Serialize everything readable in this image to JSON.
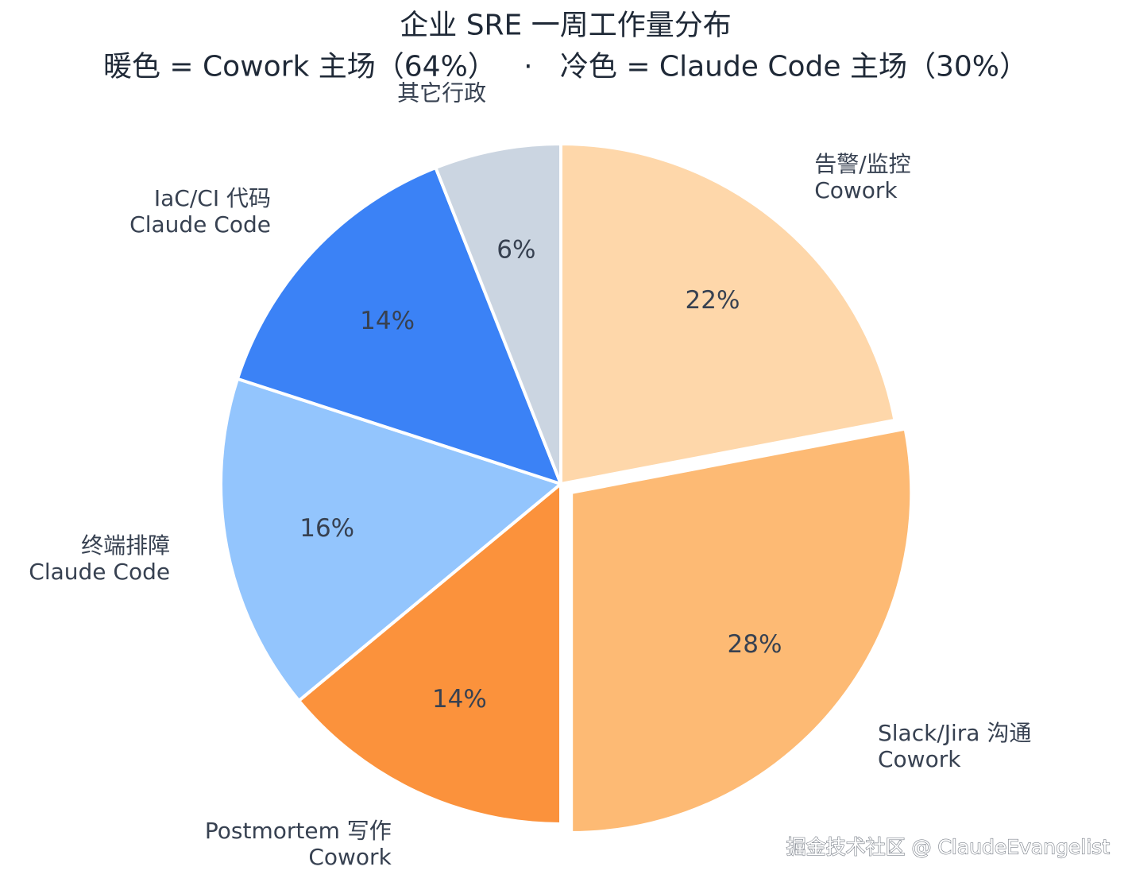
{
  "chart_data": {
    "type": "pie",
    "title": "企业 SRE 一周工作量分布",
    "subtitle": "暖色 = Cowork 主场（64%）   ·   冷色 = Claude Code 主场（30%）",
    "slices": [
      {
        "label": "告警/监控",
        "sublabel": "Cowork",
        "value": 22,
        "color": "#fed7aa",
        "exploded": false
      },
      {
        "label": "Slack/Jira 沟通",
        "sublabel": "Cowork",
        "value": 28,
        "color": "#fdba74",
        "exploded": true
      },
      {
        "label": "Postmortem 写作",
        "sublabel": "Cowork",
        "value": 14,
        "color": "#fb923c",
        "exploded": false
      },
      {
        "label": "终端排障",
        "sublabel": "Claude Code",
        "value": 16,
        "color": "#93c5fd",
        "exploded": false
      },
      {
        "label": "IaC/CI 代码",
        "sublabel": "Claude Code",
        "value": 14,
        "color": "#3b82f6",
        "exploded": false
      },
      {
        "label": "其它行政",
        "value": 6,
        "color": "#cbd5e1",
        "exploded": false
      }
    ]
  },
  "watermark": "掘金技术社区 @ ClaudeEvangelist"
}
